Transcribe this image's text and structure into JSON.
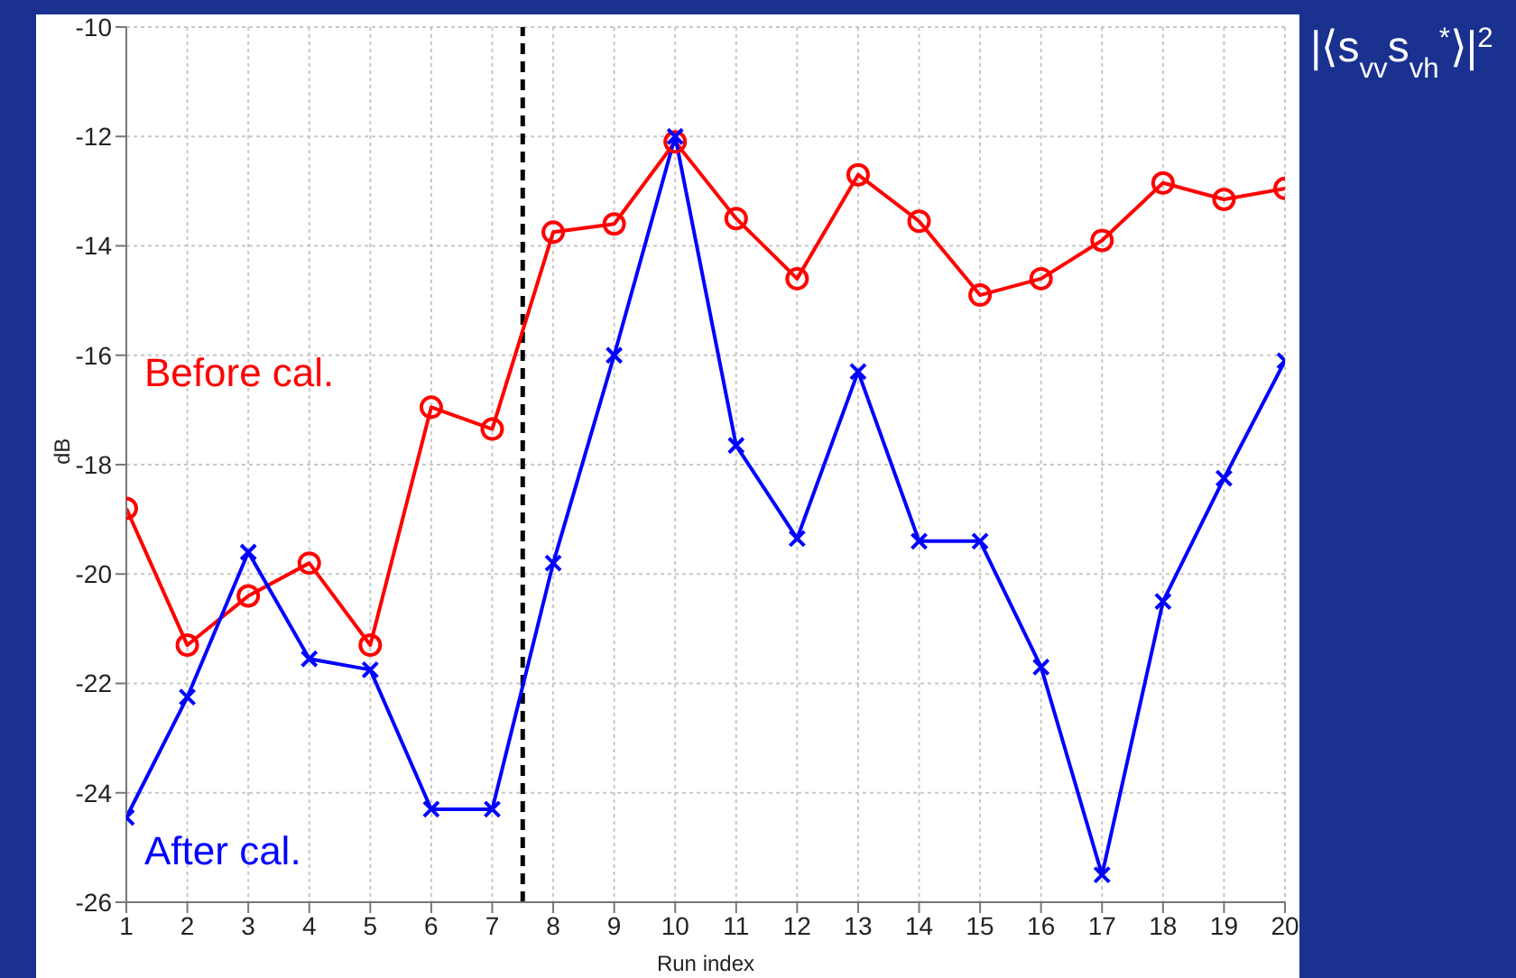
{
  "chart_data": {
    "type": "line",
    "title": "|⟨s$_{vv}$s$_{vh}$$^{*}$⟩|$^{2}$",
    "xlabel": "Run index",
    "ylabel": "dB",
    "x": [
      1,
      2,
      3,
      4,
      5,
      6,
      7,
      8,
      9,
      10,
      11,
      12,
      13,
      14,
      15,
      16,
      17,
      18,
      19,
      20
    ],
    "series": [
      {
        "name": "Before cal.",
        "color": "#ff0000",
        "marker": "circle",
        "values": [
          -18.8,
          -21.3,
          -20.4,
          -19.8,
          -21.3,
          -16.95,
          -17.35,
          -13.75,
          -13.6,
          -12.1,
          -13.5,
          -14.6,
          -12.7,
          -13.55,
          -14.9,
          -14.6,
          -13.9,
          -12.85,
          -13.15,
          -12.95
        ]
      },
      {
        "name": "After cal.",
        "color": "#0000ff",
        "marker": "cross",
        "values": [
          -24.45,
          -22.25,
          -19.6,
          -21.55,
          -21.75,
          -24.3,
          -24.3,
          -19.8,
          -16,
          -12,
          -17.65,
          -19.35,
          -16.3,
          -19.4,
          -19.4,
          -21.7,
          -25.5,
          -20.5,
          -18.25,
          -16.1
        ]
      }
    ],
    "xlim": [
      1,
      20
    ],
    "xticks": [
      1,
      2,
      3,
      4,
      5,
      6,
      7,
      8,
      9,
      10,
      11,
      12,
      13,
      14,
      15,
      16,
      17,
      18,
      19,
      20
    ],
    "ylim": [
      -26,
      -10
    ],
    "yticks": [
      -26,
      -24,
      -22,
      -20,
      -18,
      -16,
      -14,
      -12,
      -10
    ],
    "ref_lines": [
      {
        "axis": "x",
        "value": 7.5,
        "label": null,
        "color": "#000000",
        "line_style": "dashed"
      }
    ],
    "grid": true,
    "line_style": "solid"
  }
}
